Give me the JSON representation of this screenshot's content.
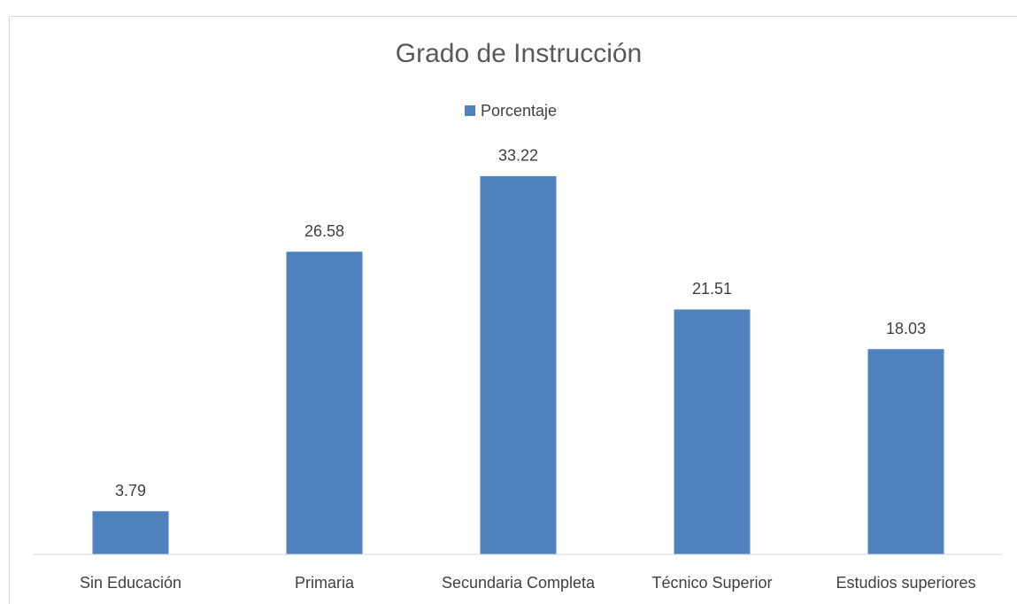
{
  "chart_data": {
    "type": "bar",
    "title": "Grado de Instrucción",
    "categories": [
      "Sin Educación",
      "Primaria",
      "Secundaria Completa",
      "Técnico Superior",
      "Estudios superiores"
    ],
    "series": [
      {
        "name": "Porcentaje",
        "color": "#4f81bd",
        "values": [
          3.79,
          26.58,
          33.22,
          21.51,
          18.03
        ]
      }
    ],
    "ylim": [
      0,
      35
    ],
    "legend": "top"
  }
}
